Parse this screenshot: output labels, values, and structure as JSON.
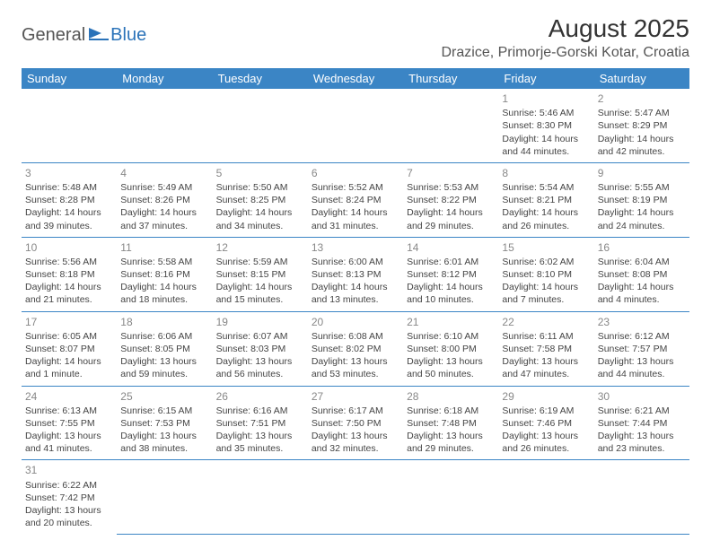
{
  "logo": {
    "part1": "General",
    "part2": "Blue"
  },
  "title": "August 2025",
  "location": "Drazice, Primorje-Gorski Kotar, Croatia",
  "colors": {
    "header_bg": "#3b85c5",
    "header_text": "#ffffff",
    "cell_border": "#3b85c5",
    "daynum": "#888888",
    "body_text": "#444444",
    "logo_gray": "#555555",
    "logo_blue": "#2b73b9"
  },
  "weekdays": [
    "Sunday",
    "Monday",
    "Tuesday",
    "Wednesday",
    "Thursday",
    "Friday",
    "Saturday"
  ],
  "weeks": [
    [
      null,
      null,
      null,
      null,
      null,
      {
        "n": "1",
        "sr": "5:46 AM",
        "ss": "8:30 PM",
        "dl": "14 hours and 44 minutes."
      },
      {
        "n": "2",
        "sr": "5:47 AM",
        "ss": "8:29 PM",
        "dl": "14 hours and 42 minutes."
      }
    ],
    [
      {
        "n": "3",
        "sr": "5:48 AM",
        "ss": "8:28 PM",
        "dl": "14 hours and 39 minutes."
      },
      {
        "n": "4",
        "sr": "5:49 AM",
        "ss": "8:26 PM",
        "dl": "14 hours and 37 minutes."
      },
      {
        "n": "5",
        "sr": "5:50 AM",
        "ss": "8:25 PM",
        "dl": "14 hours and 34 minutes."
      },
      {
        "n": "6",
        "sr": "5:52 AM",
        "ss": "8:24 PM",
        "dl": "14 hours and 31 minutes."
      },
      {
        "n": "7",
        "sr": "5:53 AM",
        "ss": "8:22 PM",
        "dl": "14 hours and 29 minutes."
      },
      {
        "n": "8",
        "sr": "5:54 AM",
        "ss": "8:21 PM",
        "dl": "14 hours and 26 minutes."
      },
      {
        "n": "9",
        "sr": "5:55 AM",
        "ss": "8:19 PM",
        "dl": "14 hours and 24 minutes."
      }
    ],
    [
      {
        "n": "10",
        "sr": "5:56 AM",
        "ss": "8:18 PM",
        "dl": "14 hours and 21 minutes."
      },
      {
        "n": "11",
        "sr": "5:58 AM",
        "ss": "8:16 PM",
        "dl": "14 hours and 18 minutes."
      },
      {
        "n": "12",
        "sr": "5:59 AM",
        "ss": "8:15 PM",
        "dl": "14 hours and 15 minutes."
      },
      {
        "n": "13",
        "sr": "6:00 AM",
        "ss": "8:13 PM",
        "dl": "14 hours and 13 minutes."
      },
      {
        "n": "14",
        "sr": "6:01 AM",
        "ss": "8:12 PM",
        "dl": "14 hours and 10 minutes."
      },
      {
        "n": "15",
        "sr": "6:02 AM",
        "ss": "8:10 PM",
        "dl": "14 hours and 7 minutes."
      },
      {
        "n": "16",
        "sr": "6:04 AM",
        "ss": "8:08 PM",
        "dl": "14 hours and 4 minutes."
      }
    ],
    [
      {
        "n": "17",
        "sr": "6:05 AM",
        "ss": "8:07 PM",
        "dl": "14 hours and 1 minute."
      },
      {
        "n": "18",
        "sr": "6:06 AM",
        "ss": "8:05 PM",
        "dl": "13 hours and 59 minutes."
      },
      {
        "n": "19",
        "sr": "6:07 AM",
        "ss": "8:03 PM",
        "dl": "13 hours and 56 minutes."
      },
      {
        "n": "20",
        "sr": "6:08 AM",
        "ss": "8:02 PM",
        "dl": "13 hours and 53 minutes."
      },
      {
        "n": "21",
        "sr": "6:10 AM",
        "ss": "8:00 PM",
        "dl": "13 hours and 50 minutes."
      },
      {
        "n": "22",
        "sr": "6:11 AM",
        "ss": "7:58 PM",
        "dl": "13 hours and 47 minutes."
      },
      {
        "n": "23",
        "sr": "6:12 AM",
        "ss": "7:57 PM",
        "dl": "13 hours and 44 minutes."
      }
    ],
    [
      {
        "n": "24",
        "sr": "6:13 AM",
        "ss": "7:55 PM",
        "dl": "13 hours and 41 minutes."
      },
      {
        "n": "25",
        "sr": "6:15 AM",
        "ss": "7:53 PM",
        "dl": "13 hours and 38 minutes."
      },
      {
        "n": "26",
        "sr": "6:16 AM",
        "ss": "7:51 PM",
        "dl": "13 hours and 35 minutes."
      },
      {
        "n": "27",
        "sr": "6:17 AM",
        "ss": "7:50 PM",
        "dl": "13 hours and 32 minutes."
      },
      {
        "n": "28",
        "sr": "6:18 AM",
        "ss": "7:48 PM",
        "dl": "13 hours and 29 minutes."
      },
      {
        "n": "29",
        "sr": "6:19 AM",
        "ss": "7:46 PM",
        "dl": "13 hours and 26 minutes."
      },
      {
        "n": "30",
        "sr": "6:21 AM",
        "ss": "7:44 PM",
        "dl": "13 hours and 23 minutes."
      }
    ],
    [
      {
        "n": "31",
        "sr": "6:22 AM",
        "ss": "7:42 PM",
        "dl": "13 hours and 20 minutes."
      },
      null,
      null,
      null,
      null,
      null,
      null
    ]
  ],
  "labels": {
    "sunrise": "Sunrise: ",
    "sunset": "Sunset: ",
    "daylight": "Daylight: "
  }
}
